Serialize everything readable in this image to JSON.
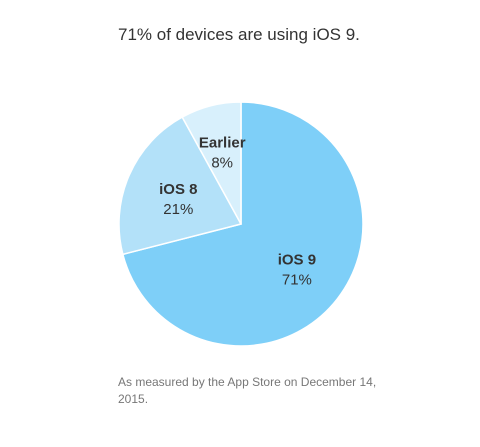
{
  "headline": "71% of devices are using iOS 9.",
  "footnote": "As measured by the App Store on December 14, 2015.",
  "chart_data": {
    "type": "pie",
    "title": "71% of devices are using iOS 9.",
    "slices": [
      {
        "label": "iOS 9",
        "value": 71,
        "value_label": "71%",
        "color": "#7ECFF8"
      },
      {
        "label": "iOS 8",
        "value": 21,
        "value_label": "21%",
        "color": "#B3E1F9"
      },
      {
        "label": "Earlier",
        "value": 8,
        "value_label": "8%",
        "color": "#D8F0FC"
      }
    ],
    "start": "12 o'clock",
    "direction": "clockwise",
    "legend": "none"
  }
}
